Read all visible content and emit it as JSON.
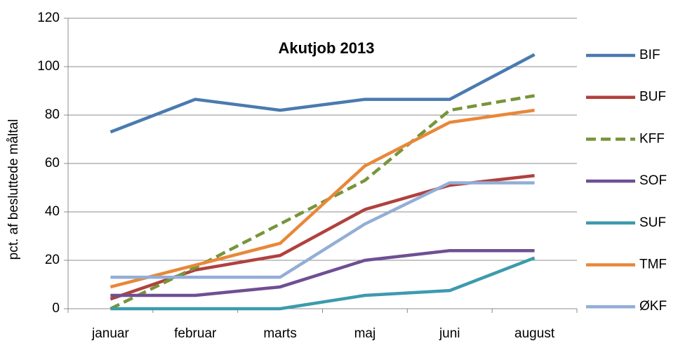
{
  "chart_data": {
    "type": "line",
    "title": "Akutjob 2013",
    "y_label": "pct. af besluttede måltal",
    "categories": [
      "januar",
      "februar",
      "marts",
      "maj",
      "juni",
      "august"
    ],
    "ylim": [
      0,
      120
    ],
    "yticks": [
      0,
      20,
      40,
      60,
      80,
      100,
      120
    ],
    "grid": true,
    "legend": "right",
    "series": [
      {
        "name": "BIF",
        "color": "#4a7ab0",
        "values": [
          73,
          86.5,
          82,
          86.5,
          86.5,
          105
        ]
      },
      {
        "name": "BUF",
        "color": "#b0413e",
        "values": [
          4,
          16,
          22,
          41,
          51,
          55
        ]
      },
      {
        "name": "KFF",
        "color": "#77953a",
        "dashed": true,
        "values": [
          0,
          17,
          35,
          53,
          82,
          88
        ]
      },
      {
        "name": "SOF",
        "color": "#6f4f93",
        "values": [
          5.5,
          5.5,
          9,
          20,
          24,
          24
        ]
      },
      {
        "name": "SUF",
        "color": "#3d9aad",
        "values": [
          0,
          0,
          0,
          5.5,
          7.5,
          21
        ]
      },
      {
        "name": "TMF",
        "color": "#e8883a",
        "values": [
          9,
          18,
          27,
          59,
          77,
          82
        ]
      },
      {
        "name": "ØKF",
        "color": "#93aed6",
        "values": [
          13,
          13,
          13,
          35,
          52,
          52
        ]
      }
    ]
  }
}
